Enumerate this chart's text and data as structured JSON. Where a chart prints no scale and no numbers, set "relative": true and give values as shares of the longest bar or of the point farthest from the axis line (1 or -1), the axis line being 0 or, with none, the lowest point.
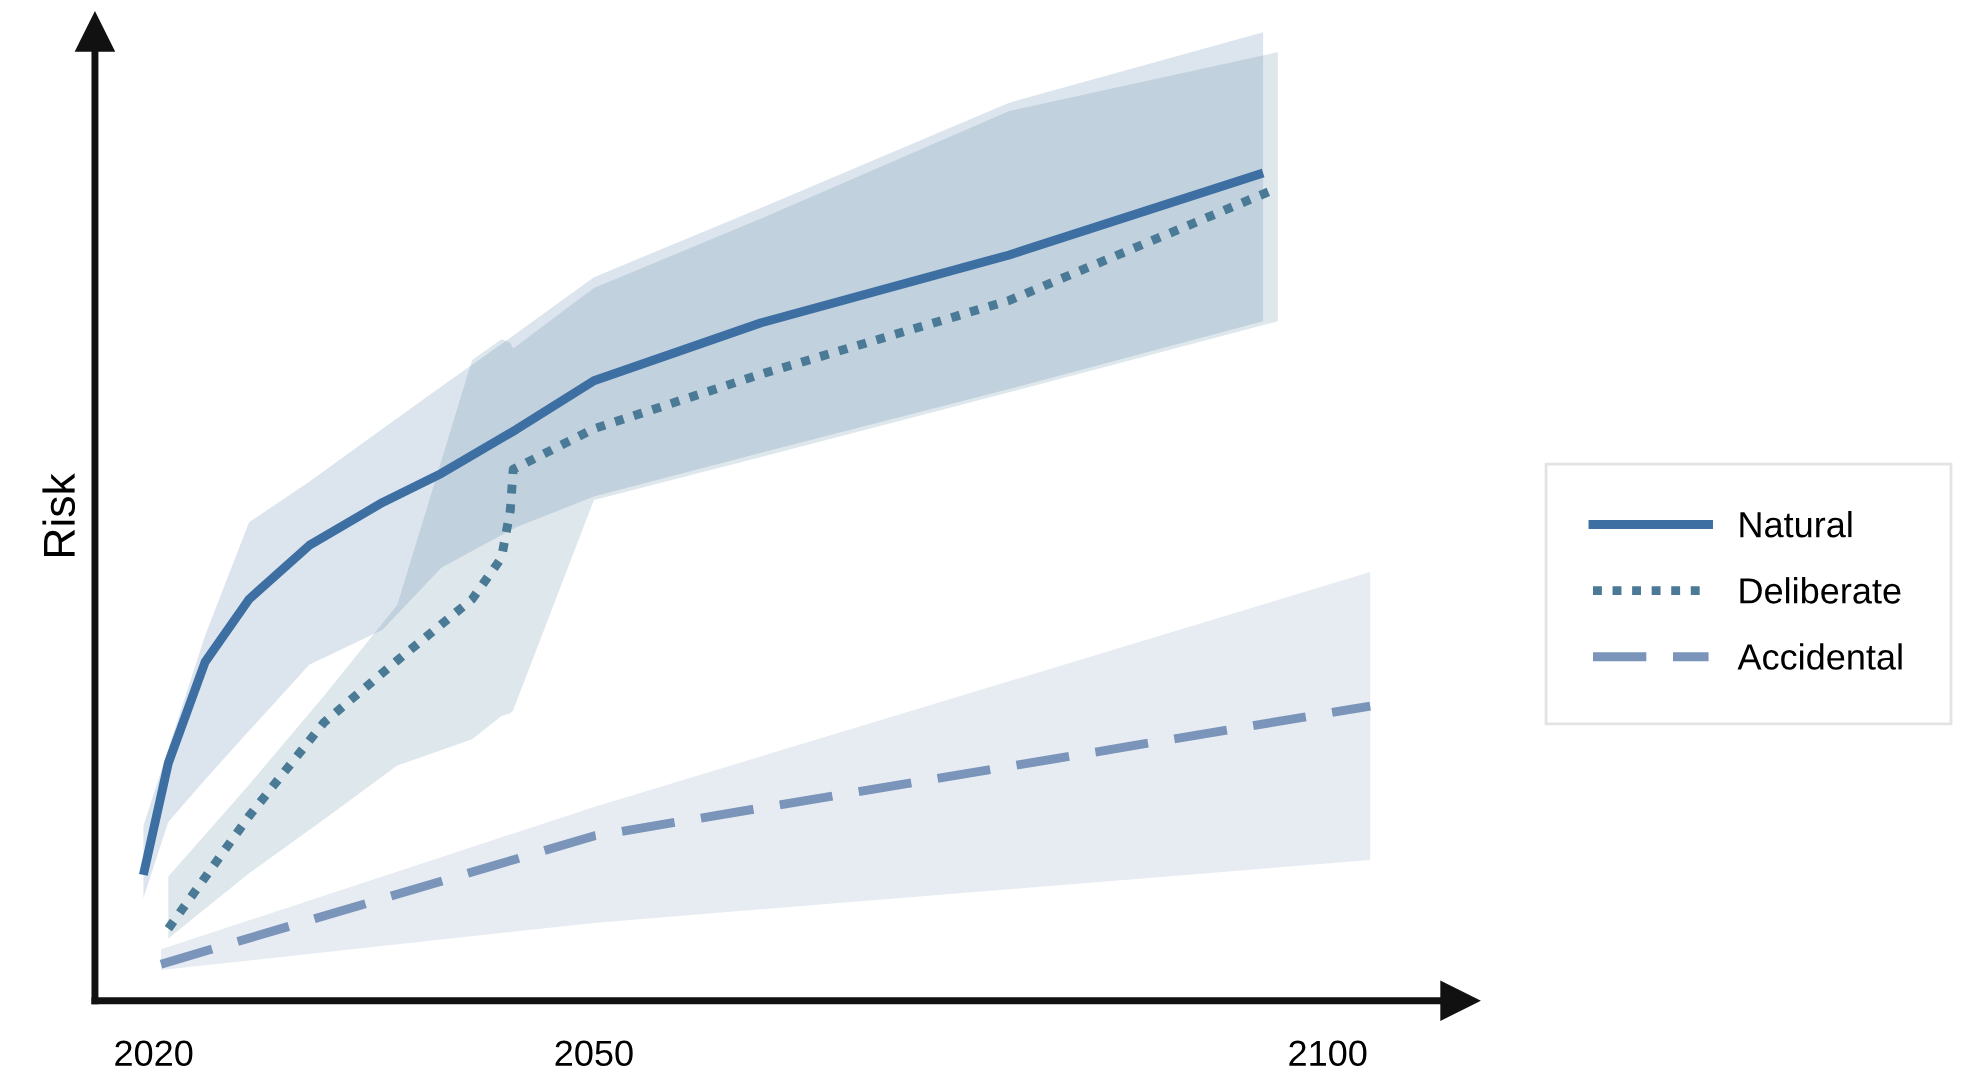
{
  "chart_data": {
    "type": "line",
    "relative": true,
    "ylabel": "Risk",
    "xlim": [
      2016,
      2109
    ],
    "xticks": [
      2020,
      2050,
      2100
    ],
    "legend": "right",
    "grid": false,
    "series": [
      {
        "name": "Natural",
        "color": "#3d6fa3",
        "line_style": "solid",
        "x": [
          2019.3,
          2021.0,
          2023.5,
          2026.5,
          2030.6,
          2035.6,
          2039.6,
          2044.7,
          2050,
          2061.4,
          2078.3,
          2095.6
        ],
        "values": [
          0.152,
          0.287,
          0.409,
          0.485,
          0.55,
          0.602,
          0.637,
          0.69,
          0.749,
          0.819,
          0.901,
          1
        ],
        "lower": [
          0.124,
          0.216,
          0.267,
          0.326,
          0.406,
          0.448,
          0.523,
          0.572,
          0.609,
          0.662,
          0.739,
          0.821
        ],
        "upper": [
          0.211,
          0.304,
          0.441,
          0.578,
          0.627,
          0.691,
          0.742,
          0.806,
          0.874,
          0.958,
          1.085,
          1.17
        ]
      },
      {
        "name": "Deliberate",
        "color": "#4a7a96",
        "line_style": "dotted",
        "x": [
          2021.0,
          2026.5,
          2031.6,
          2036.6,
          2041.7,
          2043.7,
          2044.3,
          2044.5,
          2050,
          2061.4,
          2078.3,
          2096.6
        ],
        "values": [
          0.087,
          0.223,
          0.336,
          0.411,
          0.485,
          0.535,
          0.592,
          0.642,
          0.691,
          0.757,
          0.846,
          0.982
        ],
        "lower": [
          0.075,
          0.154,
          0.219,
          0.284,
          0.316,
          0.344,
          0.347,
          0.351,
          0.605,
          0.657,
          0.735,
          0.821
        ],
        "upper": [
          0.15,
          0.261,
          0.368,
          0.478,
          0.774,
          0.799,
          0.795,
          0.788,
          0.861,
          0.945,
          1.075,
          1.146
        ]
      },
      {
        "name": "Accidental",
        "color": "#7a94ba",
        "line_style": "dashed",
        "x": [
          2020.5,
          2050,
          2102.9
        ],
        "values": [
          0.044,
          0.199,
          0.356
        ],
        "lower": [
          0.037,
          0.094,
          0.17
        ],
        "upper": [
          0.062,
          0.234,
          0.518
        ]
      }
    ]
  }
}
